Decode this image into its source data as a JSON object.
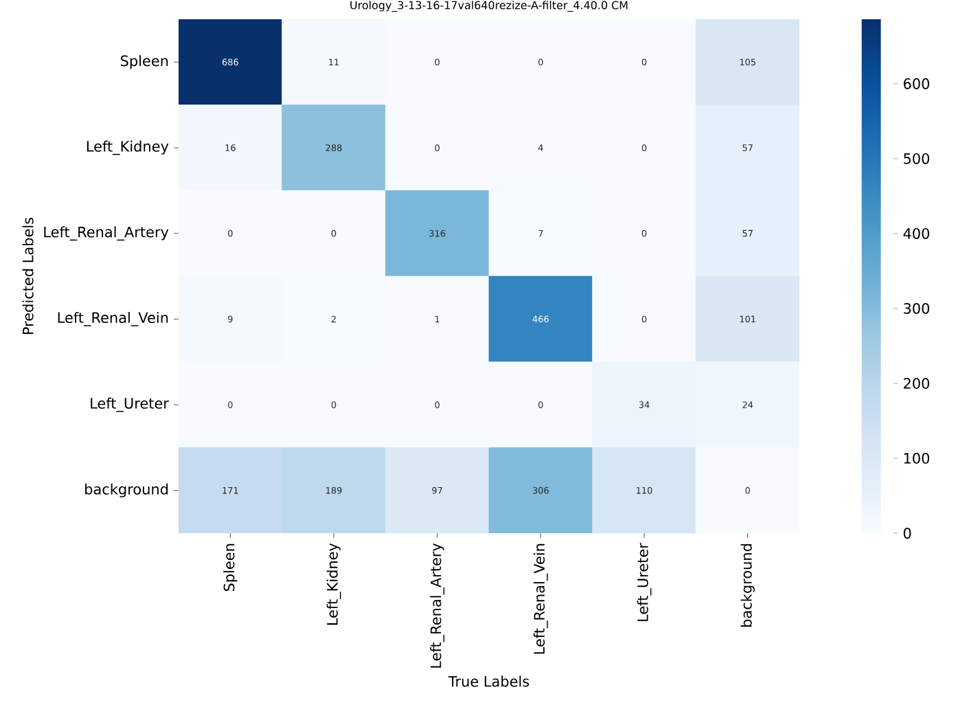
{
  "chart_data": {
    "type": "heatmap",
    "title": "Urology_3-13-16-17val640rezize-A-filter_4.40.0 CM",
    "xlabel": "True Labels",
    "ylabel": "Predicted Labels",
    "categories": [
      "Spleen",
      "Left_Kidney",
      "Left_Renal_Artery",
      "Left_Renal_Vein",
      "Left_Ureter",
      "background"
    ],
    "y_categories": [
      "Spleen",
      "Left_Kidney",
      "Left_Renal_Artery",
      "Left_Renal_Vein",
      "Left_Ureter",
      "background"
    ],
    "cells": [
      [
        686,
        11,
        0,
        0,
        0,
        105
      ],
      [
        16,
        288,
        0,
        4,
        0,
        57
      ],
      [
        0,
        0,
        316,
        7,
        0,
        57
      ],
      [
        9,
        2,
        1,
        466,
        0,
        101
      ],
      [
        0,
        0,
        0,
        0,
        34,
        24
      ],
      [
        171,
        189,
        97,
        306,
        110,
        0
      ]
    ],
    "data_labels": true,
    "clim": [
      0,
      686
    ],
    "cticks": [
      0,
      100,
      200,
      300,
      400,
      500,
      600
    ]
  }
}
